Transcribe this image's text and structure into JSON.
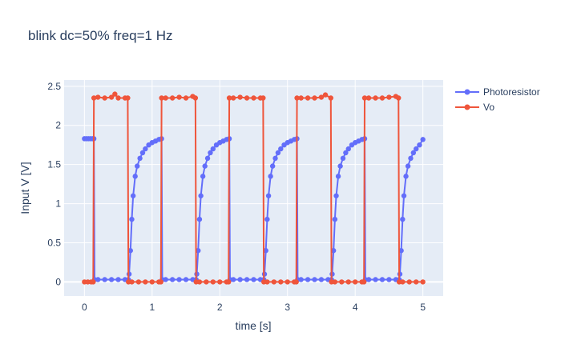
{
  "chart_data": {
    "type": "line",
    "title": "blink dc=50% freq=1 Hz",
    "xlabel": "time [s]",
    "ylabel": "Input V [V]",
    "xlim": [
      -0.3,
      5.3
    ],
    "ylim": [
      -0.18,
      2.58
    ],
    "x_ticks": [
      0,
      1,
      2,
      3,
      4,
      5
    ],
    "x_tick_labels": [
      "0",
      "1",
      "2",
      "3",
      "4",
      "5"
    ],
    "y_ticks": [
      0,
      0.5,
      1,
      1.5,
      2,
      2.5
    ],
    "y_tick_labels": [
      "0",
      "0.5",
      "1",
      "1.5",
      "2",
      "2.5"
    ],
    "grid": true,
    "legend_position": "top-right",
    "plot_background": "#e5ecf6",
    "series": [
      {
        "name": "Photoresistor",
        "color": "#636efa",
        "mode": "lines+markers",
        "points": [
          [
            0.0,
            1.83
          ],
          [
            0.03,
            1.83
          ],
          [
            0.06,
            1.83
          ],
          [
            0.09,
            1.83
          ],
          [
            0.12,
            1.83
          ],
          [
            0.14,
            1.83
          ],
          [
            0.15,
            0.03
          ],
          [
            0.2,
            0.03
          ],
          [
            0.3,
            0.03
          ],
          [
            0.4,
            0.03
          ],
          [
            0.5,
            0.03
          ],
          [
            0.6,
            0.03
          ],
          [
            0.65,
            0.03
          ],
          [
            0.66,
            0.1
          ],
          [
            0.68,
            0.4
          ],
          [
            0.7,
            0.8
          ],
          [
            0.72,
            1.1
          ],
          [
            0.75,
            1.35
          ],
          [
            0.78,
            1.48
          ],
          [
            0.82,
            1.58
          ],
          [
            0.86,
            1.65
          ],
          [
            0.9,
            1.7
          ],
          [
            0.95,
            1.75
          ],
          [
            1.0,
            1.78
          ],
          [
            1.05,
            1.8
          ],
          [
            1.1,
            1.82
          ],
          [
            1.14,
            1.83
          ],
          [
            1.15,
            0.03
          ],
          [
            1.2,
            0.03
          ],
          [
            1.3,
            0.03
          ],
          [
            1.4,
            0.03
          ],
          [
            1.5,
            0.03
          ],
          [
            1.6,
            0.03
          ],
          [
            1.65,
            0.03
          ],
          [
            1.66,
            0.1
          ],
          [
            1.68,
            0.4
          ],
          [
            1.7,
            0.8
          ],
          [
            1.72,
            1.1
          ],
          [
            1.75,
            1.35
          ],
          [
            1.78,
            1.48
          ],
          [
            1.82,
            1.58
          ],
          [
            1.86,
            1.65
          ],
          [
            1.9,
            1.7
          ],
          [
            1.95,
            1.75
          ],
          [
            2.0,
            1.78
          ],
          [
            2.05,
            1.8
          ],
          [
            2.1,
            1.82
          ],
          [
            2.14,
            1.83
          ],
          [
            2.15,
            0.03
          ],
          [
            2.2,
            0.03
          ],
          [
            2.3,
            0.03
          ],
          [
            2.4,
            0.03
          ],
          [
            2.5,
            0.03
          ],
          [
            2.6,
            0.03
          ],
          [
            2.65,
            0.03
          ],
          [
            2.66,
            0.1
          ],
          [
            2.68,
            0.4
          ],
          [
            2.7,
            0.8
          ],
          [
            2.72,
            1.1
          ],
          [
            2.75,
            1.35
          ],
          [
            2.78,
            1.48
          ],
          [
            2.82,
            1.58
          ],
          [
            2.86,
            1.65
          ],
          [
            2.9,
            1.7
          ],
          [
            2.95,
            1.75
          ],
          [
            3.0,
            1.78
          ],
          [
            3.05,
            1.8
          ],
          [
            3.1,
            1.82
          ],
          [
            3.14,
            1.83
          ],
          [
            3.15,
            0.03
          ],
          [
            3.2,
            0.03
          ],
          [
            3.3,
            0.03
          ],
          [
            3.4,
            0.03
          ],
          [
            3.5,
            0.03
          ],
          [
            3.6,
            0.03
          ],
          [
            3.65,
            0.03
          ],
          [
            3.66,
            0.1
          ],
          [
            3.68,
            0.4
          ],
          [
            3.7,
            0.8
          ],
          [
            3.72,
            1.1
          ],
          [
            3.75,
            1.35
          ],
          [
            3.78,
            1.48
          ],
          [
            3.82,
            1.58
          ],
          [
            3.86,
            1.65
          ],
          [
            3.9,
            1.7
          ],
          [
            3.95,
            1.75
          ],
          [
            4.0,
            1.78
          ],
          [
            4.05,
            1.8
          ],
          [
            4.1,
            1.82
          ],
          [
            4.14,
            1.83
          ],
          [
            4.15,
            0.03
          ],
          [
            4.2,
            0.03
          ],
          [
            4.3,
            0.03
          ],
          [
            4.4,
            0.03
          ],
          [
            4.5,
            0.03
          ],
          [
            4.6,
            0.03
          ],
          [
            4.65,
            0.03
          ],
          [
            4.66,
            0.1
          ],
          [
            4.68,
            0.4
          ],
          [
            4.7,
            0.8
          ],
          [
            4.72,
            1.1
          ],
          [
            4.75,
            1.35
          ],
          [
            4.78,
            1.48
          ],
          [
            4.82,
            1.58
          ],
          [
            4.86,
            1.65
          ],
          [
            4.9,
            1.7
          ],
          [
            4.95,
            1.75
          ],
          [
            5.0,
            1.82
          ]
        ]
      },
      {
        "name": "Vo",
        "color": "#ef553b",
        "mode": "lines+markers",
        "points": [
          [
            0.0,
            0.0
          ],
          [
            0.05,
            0.0
          ],
          [
            0.1,
            0.0
          ],
          [
            0.13,
            0.0
          ],
          [
            0.14,
            2.35
          ],
          [
            0.2,
            2.36
          ],
          [
            0.3,
            2.35
          ],
          [
            0.4,
            2.36
          ],
          [
            0.45,
            2.4
          ],
          [
            0.5,
            2.35
          ],
          [
            0.6,
            2.35
          ],
          [
            0.64,
            2.35
          ],
          [
            0.65,
            0.0
          ],
          [
            0.7,
            0.0
          ],
          [
            0.8,
            0.0
          ],
          [
            0.9,
            0.0
          ],
          [
            1.0,
            0.0
          ],
          [
            1.1,
            0.0
          ],
          [
            1.13,
            0.0
          ],
          [
            1.14,
            2.35
          ],
          [
            1.2,
            2.35
          ],
          [
            1.3,
            2.35
          ],
          [
            1.4,
            2.36
          ],
          [
            1.5,
            2.35
          ],
          [
            1.6,
            2.37
          ],
          [
            1.64,
            2.35
          ],
          [
            1.65,
            0.0
          ],
          [
            1.7,
            0.0
          ],
          [
            1.8,
            0.0
          ],
          [
            1.9,
            0.0
          ],
          [
            2.0,
            0.0
          ],
          [
            2.1,
            0.0
          ],
          [
            2.13,
            0.0
          ],
          [
            2.14,
            2.35
          ],
          [
            2.2,
            2.35
          ],
          [
            2.3,
            2.36
          ],
          [
            2.4,
            2.35
          ],
          [
            2.5,
            2.35
          ],
          [
            2.6,
            2.35
          ],
          [
            2.64,
            2.35
          ],
          [
            2.65,
            0.0
          ],
          [
            2.7,
            0.0
          ],
          [
            2.8,
            0.0
          ],
          [
            2.9,
            0.0
          ],
          [
            3.0,
            0.0
          ],
          [
            3.1,
            0.0
          ],
          [
            3.13,
            0.0
          ],
          [
            3.14,
            2.35
          ],
          [
            3.2,
            2.35
          ],
          [
            3.3,
            2.35
          ],
          [
            3.4,
            2.35
          ],
          [
            3.5,
            2.36
          ],
          [
            3.56,
            2.39
          ],
          [
            3.64,
            2.35
          ],
          [
            3.65,
            0.0
          ],
          [
            3.7,
            0.0
          ],
          [
            3.8,
            0.0
          ],
          [
            3.9,
            0.0
          ],
          [
            4.0,
            0.0
          ],
          [
            4.1,
            0.0
          ],
          [
            4.13,
            0.0
          ],
          [
            4.14,
            2.35
          ],
          [
            4.2,
            2.35
          ],
          [
            4.3,
            2.35
          ],
          [
            4.4,
            2.35
          ],
          [
            4.5,
            2.36
          ],
          [
            4.6,
            2.37
          ],
          [
            4.64,
            2.35
          ],
          [
            4.65,
            0.0
          ],
          [
            4.7,
            0.0
          ],
          [
            4.8,
            0.0
          ],
          [
            4.9,
            0.0
          ],
          [
            5.0,
            0.0
          ]
        ]
      }
    ]
  }
}
